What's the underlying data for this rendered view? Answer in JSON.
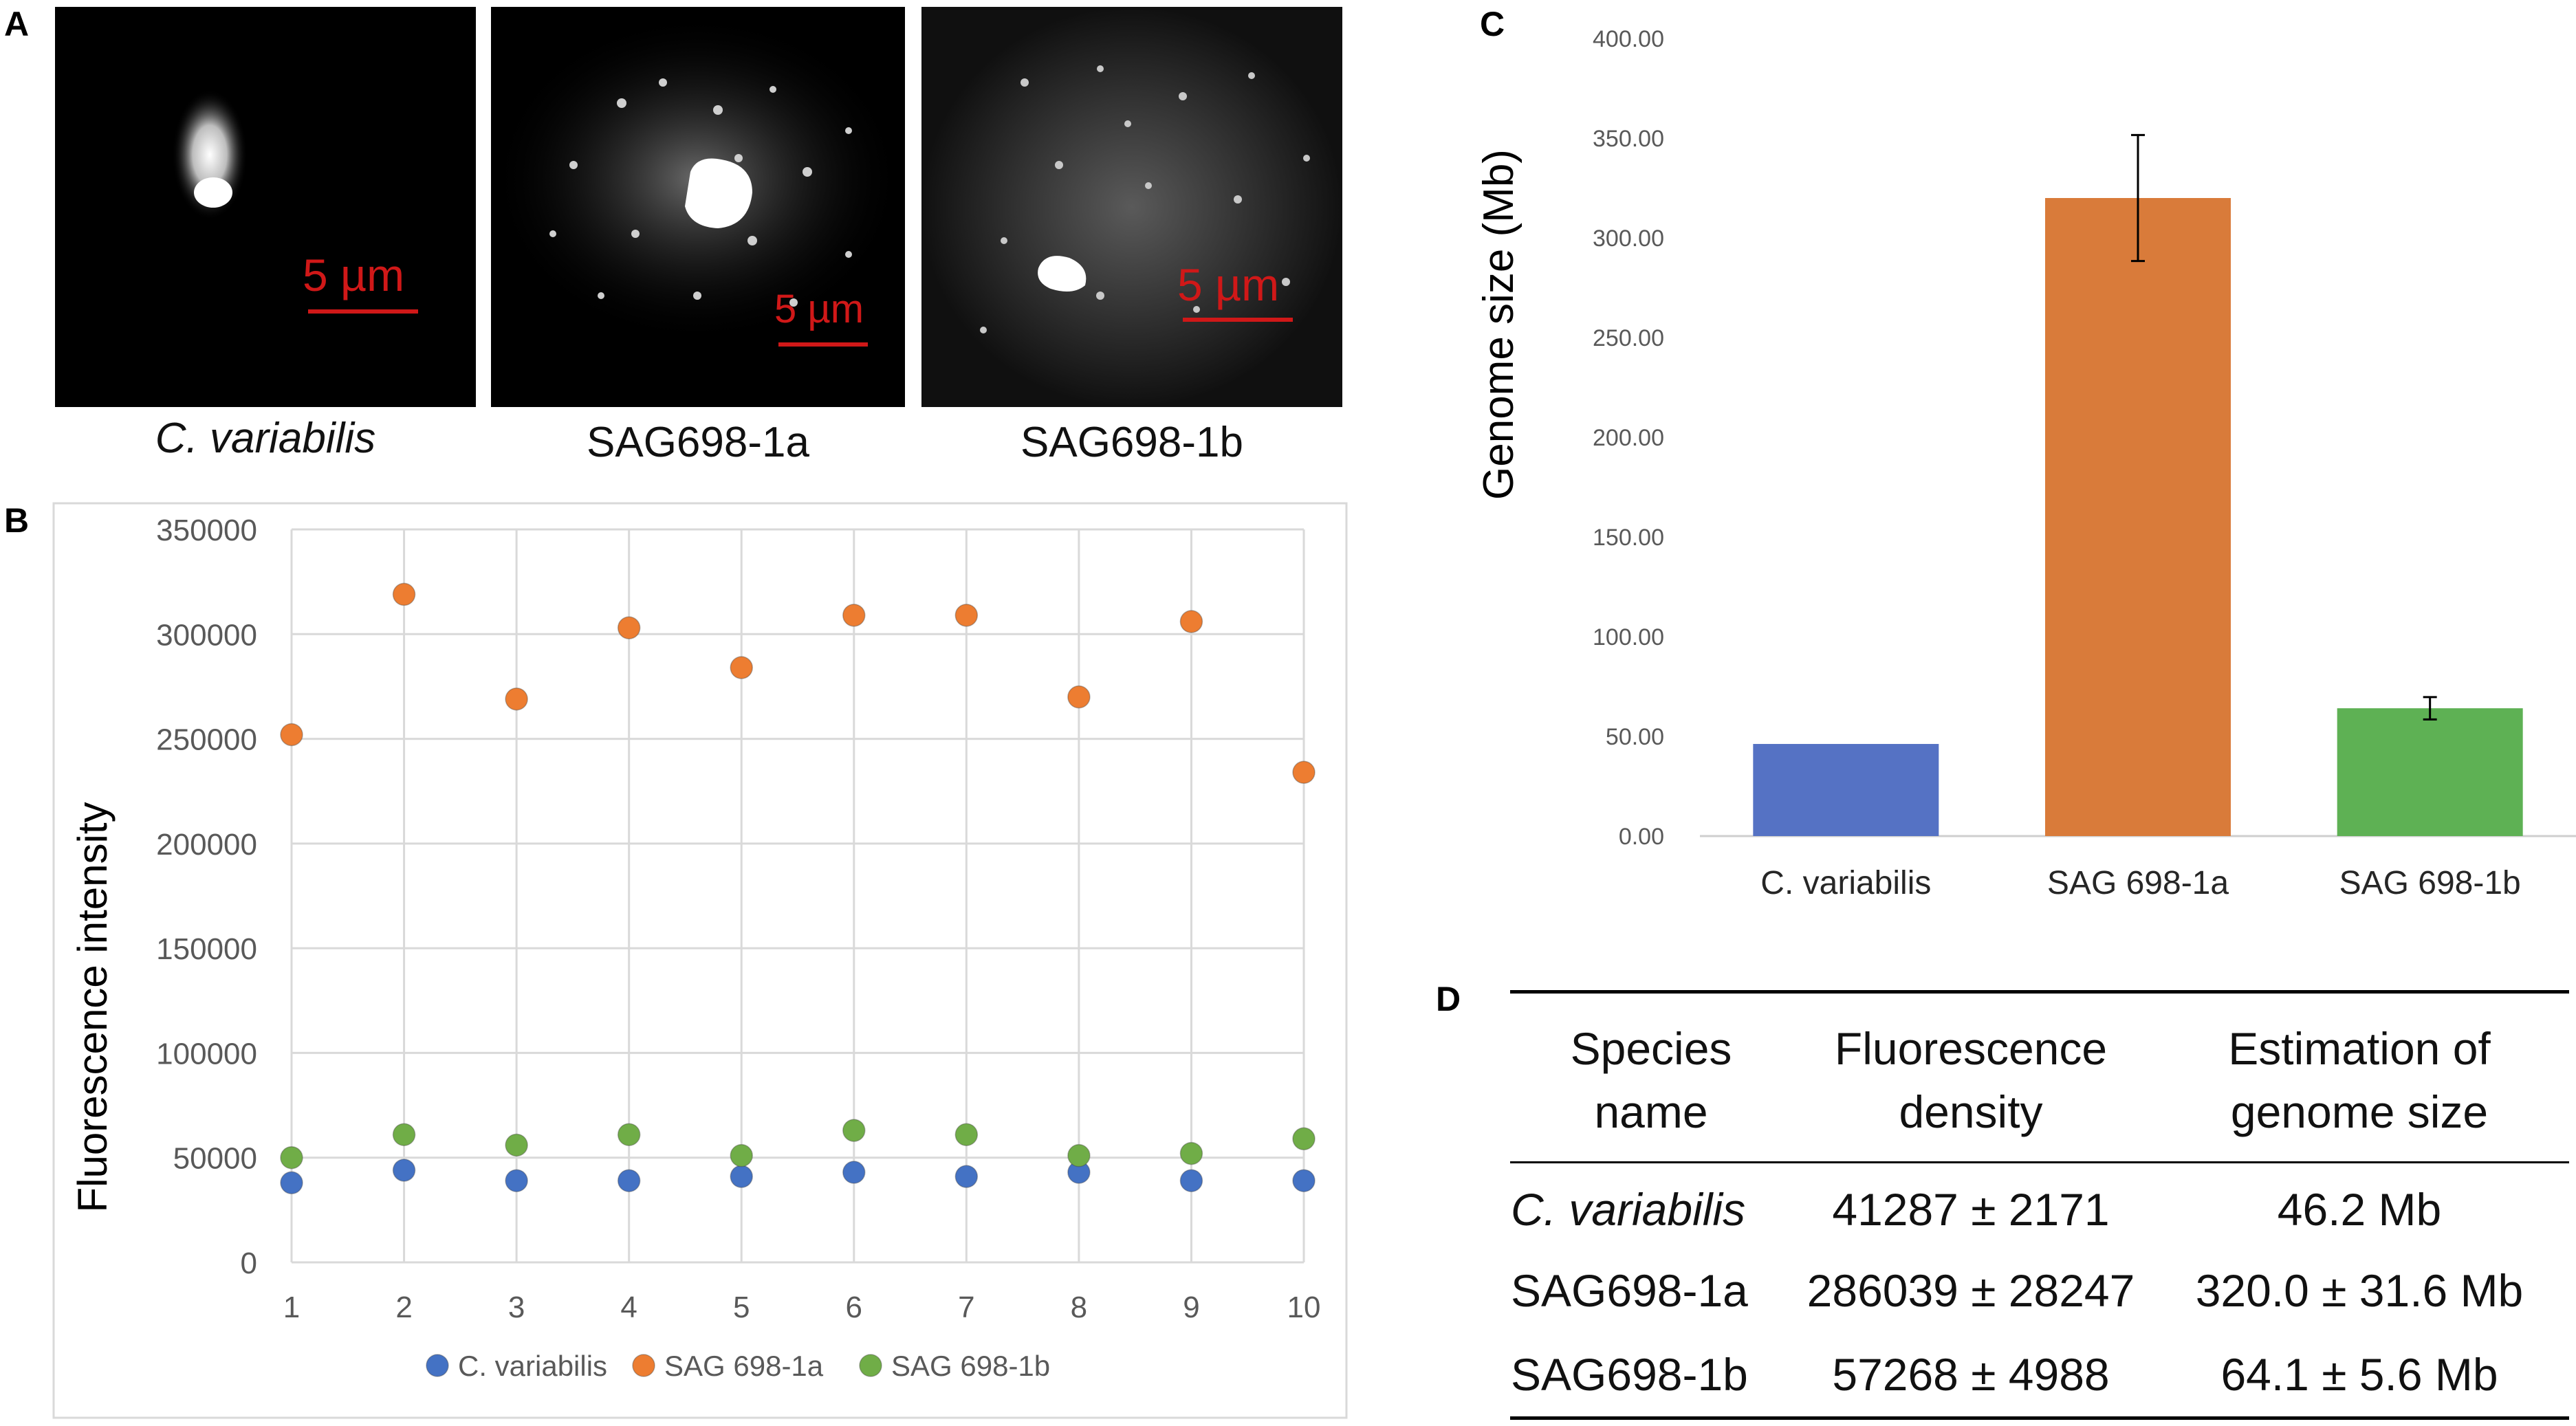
{
  "panels": {
    "a": "A",
    "b": "B",
    "c": "C",
    "d": "D"
  },
  "micrographs": [
    {
      "caption": "C. variabilis",
      "scale": "5 µm"
    },
    {
      "caption": "SAG698-1a",
      "scale": "5 µm"
    },
    {
      "caption": "SAG698-1b",
      "scale": "5 µm"
    }
  ],
  "colors": {
    "blue": "#4472c4",
    "orange": "#ed7d31",
    "green": "#70ad47",
    "bar_blue": "#5572c4",
    "bar_orange": "#d97b3a",
    "bar_green": "#5eb154",
    "scale_red": "#d01818"
  },
  "chart_data": [
    {
      "id": "B",
      "type": "scatter",
      "ylabel": "Fluorescence intensity",
      "ylim": [
        0,
        350000
      ],
      "yticks": [
        "0",
        "50000",
        "100000",
        "150000",
        "200000",
        "250000",
        "300000",
        "350000"
      ],
      "x": [
        1,
        2,
        3,
        4,
        5,
        6,
        7,
        8,
        9,
        10
      ],
      "grid": true,
      "legend": "bottom",
      "series": [
        {
          "name": "C. variabilis",
          "color": "#4472c4",
          "values": [
            38000,
            44000,
            39000,
            39000,
            41000,
            43000,
            41000,
            43000,
            39000,
            39000
          ]
        },
        {
          "name": "SAG 698-1a",
          "color": "#ed7d31",
          "values": [
            252000,
            319000,
            269000,
            303000,
            284000,
            309000,
            309000,
            270000,
            306000,
            234000
          ]
        },
        {
          "name": "SAG 698-1b",
          "color": "#70ad47",
          "values": [
            50000,
            61000,
            56000,
            61000,
            51000,
            63000,
            61000,
            51000,
            52000,
            59000
          ]
        }
      ]
    },
    {
      "id": "C",
      "type": "bar",
      "ylabel": "Genome size (Mb)",
      "ylim": [
        0,
        400
      ],
      "yticks": [
        "0.00",
        "50.00",
        "100.00",
        "150.00",
        "200.00",
        "250.00",
        "300.00",
        "350.00",
        "400.00"
      ],
      "categories": [
        "C. variabilis",
        "SAG 698-1a",
        "SAG 698-1b"
      ],
      "values": [
        46.2,
        320.0,
        64.1
      ],
      "errors": [
        0,
        31.6,
        5.6
      ],
      "colors": [
        "#5572c4",
        "#d97b3a",
        "#5eb154"
      ]
    }
  ],
  "table": {
    "headers": [
      [
        "Species",
        "name"
      ],
      [
        "Fluorescence",
        "density"
      ],
      [
        "Estimation of",
        "genome size"
      ]
    ],
    "rows": [
      [
        "C. variabilis",
        "41287 ± 2171",
        "46.2 Mb"
      ],
      [
        "SAG698-1a",
        "286039 ± 28247",
        "320.0 ± 31.6 Mb"
      ],
      [
        "SAG698-1b",
        "57268 ± 4988",
        "64.1 ± 5.6 Mb"
      ]
    ]
  }
}
